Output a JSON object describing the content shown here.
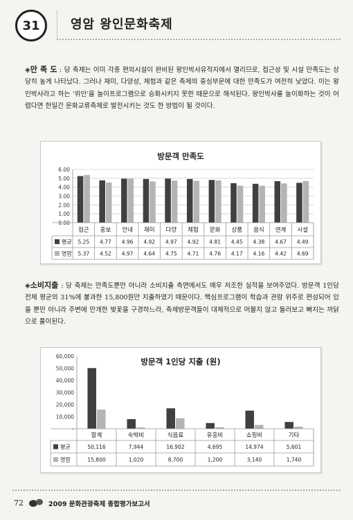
{
  "header": {
    "chapter_number": "31",
    "title": "영암 왕인문화축제"
  },
  "section1": {
    "bullet": "◈",
    "term": "만 족 도",
    "colon": " :",
    "text": " 당 축제는 이미 각종 편의시설이 완비된 왕인박사유적지에서 열리므로, 접근성 및 시설 만족도는 상당히 높게 나타났다. 그러나 재미, 다양성, 체험과 같은 축제의 중심부문에 대한 만족도가 여전히 낮았다. 이는 왕인박사라고 하는 '위인'을 놀이프로그램으로 승화시키지 못한 때문으로 해석된다. 왕인박사를 놀이화하는 것이 어렵다면 한일간 문화교류축제로 발전시키는 것도 한 방법이 될 것이다."
  },
  "section2": {
    "bullet": "◈",
    "term": "소비지출",
    "colon": " :",
    "text": " 당 축제는 만족도뿐만 아니라 소비지출 측면에서도 매우 저조한 실적을 보여주었다. 방문객 1인당 전체 평균의 31%에 불과한 15,800원만 지출하였기 때문이다. 핵심프로그램이 학습과 관람 위주로 편성되어 있을 뿐만 아니라 주변에 만개한 벚꽃을 구경하느라, 축제방문객들이 대체적으로 머물지 않고 둘러보고 빠지는 까닭으로 풀이된다."
  },
  "chart_data": [
    {
      "type": "bar",
      "title": "방문객 만족도",
      "categories": [
        "접근",
        "홍보",
        "안내",
        "재미",
        "다양",
        "체험",
        "문화",
        "상품",
        "음식",
        "연계",
        "시설"
      ],
      "series": [
        {
          "name": "평균",
          "color": "#404040",
          "values": [
            5.25,
            4.77,
            4.96,
            4.92,
            4.97,
            4.92,
            4.81,
            4.45,
            4.38,
            4.67,
            4.49
          ],
          "labels": [
            "5.25",
            "4.77",
            "4.96",
            "4.92",
            "4.97",
            "4.92",
            "4.81",
            "4.45",
            "4.38",
            "4.67",
            "4.49"
          ]
        },
        {
          "name": "영암",
          "color": "#b4b4b4",
          "values": [
            5.37,
            4.52,
            4.97,
            4.64,
            4.75,
            4.71,
            4.76,
            4.17,
            4.16,
            4.42,
            4.69
          ],
          "labels": [
            "5.37",
            "4.52",
            "4.97",
            "4.64",
            "4.75",
            "4.71",
            "4.76",
            "4.17",
            "4.16",
            "4.42",
            "4.69"
          ]
        }
      ],
      "ylim": [
        0,
        6
      ],
      "yticks": [
        "0.00",
        "1.00",
        "2.00",
        "3.00",
        "4.00",
        "5.00",
        "6.00"
      ],
      "grid": true,
      "legend": "data-table"
    },
    {
      "type": "bar",
      "title": "방문객 1인당 지출 (원)",
      "categories": [
        "합계",
        "숙박비",
        "식음료",
        "유흥비",
        "쇼핑비",
        "기타"
      ],
      "series": [
        {
          "name": "평균",
          "color": "#404040",
          "values": [
            50116,
            7944,
            16902,
            4695,
            14974,
            5601
          ],
          "labels": [
            "50,116",
            "7,944",
            "16,902",
            "4,695",
            "14,974",
            "5,601"
          ]
        },
        {
          "name": "영암",
          "color": "#b4b4b4",
          "values": [
            15800,
            1020,
            8700,
            1200,
            3140,
            1740
          ],
          "labels": [
            "15,800",
            "1,020",
            "8,700",
            "1,200",
            "3,140",
            "1,740"
          ]
        }
      ],
      "ylim": [
        0,
        60000
      ],
      "yticks": [
        "-",
        "10,000",
        "20,000",
        "30,000",
        "40,000",
        "50,000",
        "60,000"
      ],
      "grid": false,
      "legend": "data-table"
    }
  ],
  "footer": {
    "page_number": "72",
    "report_title": "2009 문화관광축제 종합평가보고서"
  }
}
